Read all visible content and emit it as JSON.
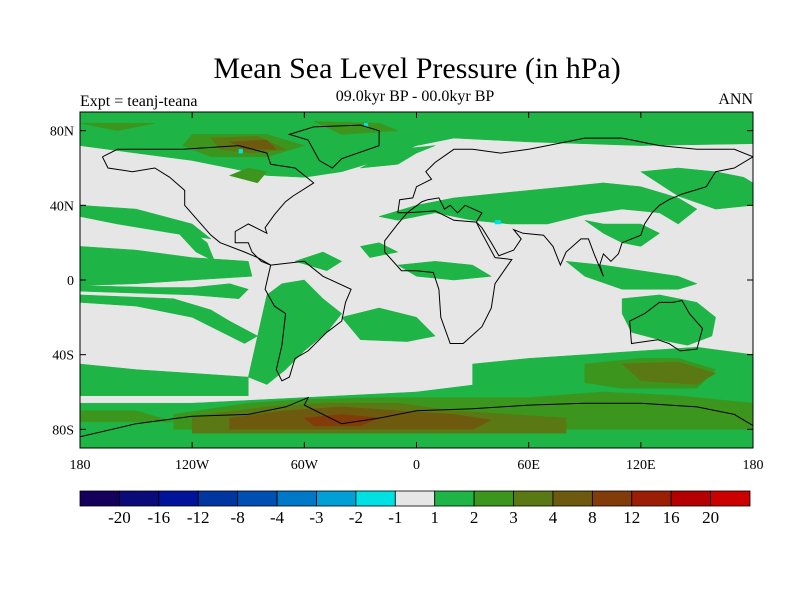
{
  "title": "Mean Sea Level Pressure (in hPa)",
  "subtitle": "09.0kyr BP - 00.0kyr BP",
  "left_label": "Expt = teanj-teana",
  "right_label": "ANN",
  "chart_data": {
    "type": "heatmap",
    "projection": "cylindrical-equidistant",
    "xlim": [
      -180,
      180
    ],
    "ylim": [
      -90,
      90
    ],
    "x_ticks": [
      {
        "value": -180,
        "label": "180"
      },
      {
        "value": -120,
        "label": "120W"
      },
      {
        "value": -60,
        "label": "60W"
      },
      {
        "value": 0,
        "label": "0"
      },
      {
        "value": 60,
        "label": "60E"
      },
      {
        "value": 120,
        "label": "120E"
      },
      {
        "value": 180,
        "label": "180"
      }
    ],
    "y_ticks": [
      {
        "value": 80,
        "label": "80N"
      },
      {
        "value": 40,
        "label": "40N"
      },
      {
        "value": 0,
        "label": "0"
      },
      {
        "value": -40,
        "label": "40S"
      },
      {
        "value": -80,
        "label": "80S"
      }
    ],
    "colorbar": {
      "levels": [
        "-20",
        "-16",
        "-12",
        "-8",
        "-4",
        "-3",
        "-2",
        "-1",
        "1",
        "2",
        "3",
        "4",
        "8",
        "12",
        "16",
        "20"
      ],
      "colors": [
        "#14005a",
        "#0a0a78",
        "#00149b",
        "#0036a0",
        "#0050b4",
        "#0078c8",
        "#00a0d7",
        "#00e1e1",
        "#e6e6e6",
        "#1eb446",
        "#3c961e",
        "#5a7814",
        "#6e5a0f",
        "#823c0a",
        "#9b1e05",
        "#b40000",
        "#cd0000"
      ]
    },
    "regions": [
      {
        "level": "2",
        "color": "#1eb446",
        "polygons": [
          [
            [
              -180,
              -66
            ],
            [
              180,
              -66
            ],
            [
              180,
              -90
            ],
            [
              -180,
              -90
            ]
          ],
          [
            [
              -160,
              -72
            ],
            [
              -120,
              -66
            ],
            [
              -60,
              -63
            ],
            [
              0,
              -60
            ],
            [
              40,
              -55
            ],
            [
              100,
              -48
            ],
            [
              140,
              -45
            ],
            [
              180,
              -52
            ],
            [
              180,
              -67
            ],
            [
              -180,
              -67
            ],
            [
              -180,
              -72
            ]
          ],
          [
            [
              -180,
              90
            ],
            [
              180,
              90
            ],
            [
              180,
              73
            ],
            [
              120,
              72
            ],
            [
              60,
              74
            ],
            [
              20,
              76
            ],
            [
              0,
              72
            ],
            [
              -20,
              64
            ],
            [
              -40,
              58
            ],
            [
              -60,
              55
            ],
            [
              -80,
              56
            ],
            [
              -120,
              64
            ],
            [
              -150,
              68
            ],
            [
              -180,
              72
            ]
          ],
          [
            [
              -180,
              40
            ],
            [
              -150,
              38
            ],
            [
              -120,
              30
            ],
            [
              -110,
              22
            ],
            [
              -130,
              25
            ],
            [
              -160,
              30
            ],
            [
              -180,
              34
            ]
          ],
          [
            [
              -140,
              34
            ],
            [
              -130,
              28
            ],
            [
              -118,
              15
            ],
            [
              -108,
              10
            ],
            [
              -112,
              20
            ],
            [
              -125,
              30
            ]
          ],
          [
            [
              -180,
              18
            ],
            [
              -150,
              16
            ],
            [
              -120,
              12
            ],
            [
              -90,
              10
            ],
            [
              -88,
              2
            ],
            [
              -120,
              0
            ],
            [
              -150,
              -2
            ],
            [
              -180,
              -3
            ]
          ],
          [
            [
              -180,
              -3
            ],
            [
              -140,
              -4
            ],
            [
              -120,
              -4
            ],
            [
              -100,
              -2
            ],
            [
              -90,
              -5
            ],
            [
              -95,
              -10
            ],
            [
              -120,
              -8
            ],
            [
              -150,
              -7
            ],
            [
              -180,
              -6
            ]
          ],
          [
            [
              -180,
              -8
            ],
            [
              -130,
              -10
            ],
            [
              -110,
              -16
            ],
            [
              -100,
              -22
            ],
            [
              -85,
              -30
            ],
            [
              -92,
              -34
            ],
            [
              -120,
              -20
            ],
            [
              -150,
              -14
            ],
            [
              -180,
              -12
            ]
          ],
          [
            [
              -80,
              -8
            ],
            [
              -72,
              -2
            ],
            [
              -60,
              0
            ],
            [
              -50,
              -10
            ],
            [
              -40,
              -18
            ],
            [
              -48,
              -28
            ],
            [
              -60,
              -38
            ],
            [
              -70,
              -48
            ],
            [
              -80,
              -56
            ],
            [
              -90,
              -52
            ],
            [
              -85,
              -30
            ]
          ],
          [
            [
              -40,
              -20
            ],
            [
              -20,
              -15
            ],
            [
              0,
              -20
            ],
            [
              10,
              -30
            ],
            [
              -5,
              -33
            ],
            [
              -30,
              -32
            ]
          ],
          [
            [
              -65,
              10
            ],
            [
              -50,
              15
            ],
            [
              -40,
              10
            ],
            [
              -48,
              5
            ]
          ],
          [
            [
              -30,
              18
            ],
            [
              -20,
              20
            ],
            [
              -10,
              15
            ],
            [
              -25,
              12
            ]
          ],
          [
            [
              -10,
              8
            ],
            [
              10,
              10
            ],
            [
              30,
              8
            ],
            [
              40,
              2
            ],
            [
              20,
              0
            ],
            [
              0,
              2
            ]
          ],
          [
            [
              -20,
              34
            ],
            [
              0,
              40
            ],
            [
              20,
              44
            ],
            [
              40,
              46
            ],
            [
              60,
              48
            ],
            [
              80,
              50
            ],
            [
              100,
              52
            ],
            [
              120,
              50
            ],
            [
              140,
              44
            ],
            [
              150,
              38
            ],
            [
              140,
              30
            ],
            [
              130,
              36
            ],
            [
              110,
              38
            ],
            [
              90,
              35
            ],
            [
              70,
              30
            ],
            [
              50,
              30
            ],
            [
              30,
              32
            ],
            [
              10,
              36
            ],
            [
              -10,
              32
            ]
          ],
          [
            [
              120,
              58
            ],
            [
              140,
              60
            ],
            [
              160,
              58
            ],
            [
              175,
              55
            ],
            [
              180,
              52
            ],
            [
              180,
              40
            ],
            [
              160,
              38
            ],
            [
              140,
              45
            ]
          ],
          [
            [
              90,
              32
            ],
            [
              100,
              25
            ],
            [
              110,
              20
            ],
            [
              120,
              18
            ],
            [
              130,
              25
            ],
            [
              120,
              30
            ],
            [
              100,
              30
            ]
          ],
          [
            [
              80,
              10
            ],
            [
              100,
              8
            ],
            [
              120,
              5
            ],
            [
              140,
              2
            ],
            [
              150,
              -2
            ],
            [
              140,
              -5
            ],
            [
              110,
              -5
            ],
            [
              90,
              2
            ]
          ],
          [
            [
              110,
              -10
            ],
            [
              130,
              -8
            ],
            [
              150,
              -12
            ],
            [
              160,
              -20
            ],
            [
              158,
              -30
            ],
            [
              145,
              -35
            ],
            [
              130,
              -32
            ],
            [
              115,
              -28
            ],
            [
              110,
              -18
            ]
          ],
          [
            [
              30,
              -45
            ],
            [
              60,
              -42
            ],
            [
              90,
              -40
            ],
            [
              120,
              -38
            ],
            [
              150,
              -36
            ],
            [
              180,
              -40
            ],
            [
              180,
              -60
            ],
            [
              30,
              -60
            ]
          ],
          [
            [
              -180,
              -45
            ],
            [
              -150,
              -48
            ],
            [
              -120,
              -50
            ],
            [
              -90,
              -52
            ],
            [
              -90,
              -62
            ],
            [
              -180,
              -62
            ]
          ],
          [
            [
              -30,
              60
            ],
            [
              -10,
              62
            ],
            [
              0,
              68
            ],
            [
              10,
              72
            ],
            [
              -10,
              70
            ]
          ]
        ]
      },
      {
        "level": "3",
        "color": "#3c961e",
        "polygons": [
          [
            [
              -130,
              -72
            ],
            [
              -90,
              -66
            ],
            [
              -60,
              -64
            ],
            [
              -20,
              -63
            ],
            [
              20,
              -63
            ],
            [
              60,
              -63
            ],
            [
              100,
              -60
            ],
            [
              140,
              -62
            ],
            [
              180,
              -66
            ],
            [
              180,
              -80
            ],
            [
              -130,
              -80
            ]
          ],
          [
            [
              -180,
              -70
            ],
            [
              -150,
              -70
            ],
            [
              -130,
              -76
            ],
            [
              -180,
              -76
            ]
          ],
          [
            [
              90,
              -45
            ],
            [
              120,
              -42
            ],
            [
              140,
              -42
            ],
            [
              160,
              -48
            ],
            [
              150,
              -58
            ],
            [
              110,
              -58
            ],
            [
              90,
              -55
            ]
          ],
          [
            [
              -120,
              78
            ],
            [
              -80,
              78
            ],
            [
              -60,
              72
            ],
            [
              -80,
              66
            ],
            [
              -110,
              66
            ],
            [
              -125,
              72
            ]
          ],
          [
            [
              -100,
              56
            ],
            [
              -90,
              60
            ],
            [
              -80,
              58
            ],
            [
              -85,
              52
            ]
          ],
          [
            [
              -55,
              85
            ],
            [
              -20,
              84
            ],
            [
              -10,
              80
            ],
            [
              -40,
              78
            ]
          ],
          [
            [
              -180,
              84
            ],
            [
              -140,
              84
            ],
            [
              -160,
              80
            ]
          ]
        ]
      },
      {
        "level": "4",
        "color": "#5a7814",
        "polygons": [
          [
            [
              -120,
              -73
            ],
            [
              -80,
              -68
            ],
            [
              -50,
              -66
            ],
            [
              -10,
              -66
            ],
            [
              20,
              -70
            ],
            [
              50,
              -72
            ],
            [
              80,
              -74
            ],
            [
              80,
              -82
            ],
            [
              -120,
              -82
            ]
          ],
          [
            [
              110,
              -45
            ],
            [
              140,
              -44
            ],
            [
              160,
              -50
            ],
            [
              150,
              -56
            ],
            [
              120,
              -54
            ]
          ],
          [
            [
              -110,
              76
            ],
            [
              -85,
              77
            ],
            [
              -70,
              70
            ],
            [
              -88,
              68
            ],
            [
              -105,
              70
            ]
          ]
        ]
      },
      {
        "level": "8",
        "color": "#6e5a0f",
        "polygons": [
          [
            [
              -100,
              -74
            ],
            [
              -70,
              -70
            ],
            [
              -40,
              -68
            ],
            [
              -10,
              -70
            ],
            [
              20,
              -72
            ],
            [
              40,
              -75
            ],
            [
              30,
              -80
            ],
            [
              -100,
              -80
            ]
          ],
          [
            [
              -100,
              74
            ],
            [
              -80,
              75
            ],
            [
              -75,
              70
            ],
            [
              -92,
              70
            ]
          ]
        ]
      },
      {
        "level": "12",
        "color": "#823c0a",
        "polygons": [
          [
            [
              -60,
              -74
            ],
            [
              -40,
              -72
            ],
            [
              -20,
              -74
            ],
            [
              -30,
              -78
            ],
            [
              -55,
              -78
            ]
          ]
        ]
      },
      {
        "level": "-1",
        "color": "#00e1e1",
        "polygons": [
          [
            [
              -28,
              84
            ],
            [
              -26,
              84
            ],
            [
              -26,
              82
            ],
            [
              -28,
              82
            ]
          ],
          [
            [
              -95,
              70
            ],
            [
              -93,
              70
            ],
            [
              -93,
              68
            ],
            [
              -95,
              68
            ]
          ],
          [
            [
              42,
              32
            ],
            [
              45,
              32
            ],
            [
              45,
              30
            ],
            [
              42,
              30
            ]
          ]
        ]
      }
    ]
  }
}
